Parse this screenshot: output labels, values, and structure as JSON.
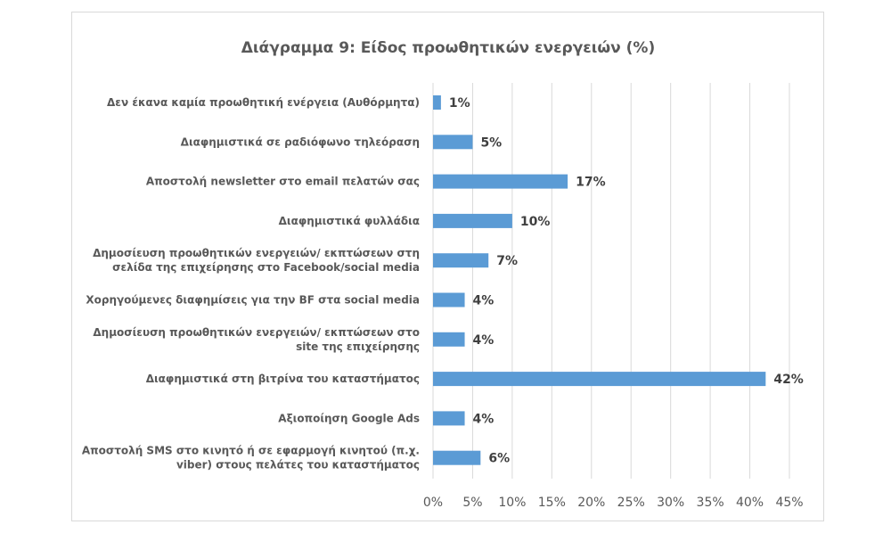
{
  "chart_data": {
    "type": "bar",
    "orientation": "horizontal",
    "title": "Διάγραμμα 9: Είδος προωθητικών ενεργειών  (%)",
    "categories": [
      [
        "Δεν έκανα καμία προωθητική ενέργεια (Αυθόρμητα)"
      ],
      [
        "Διαφημιστικά σε ραδιόφωνο τηλεόραση"
      ],
      [
        "Αποστολή newsletter στο email πελατών σας"
      ],
      [
        "Διαφημιστικά φυλλάδια"
      ],
      [
        "Δημοσίευση προωθητικών ενεργειών/ εκπτώσεων στη",
        "σελίδα της επιχείρησης στο Facebook/social media"
      ],
      [
        "Χορηγούμενες διαφημίσεις για την BF στα social media"
      ],
      [
        "Δημοσίευση προωθητικών ενεργειών/ εκπτώσεων στο",
        "site της επιχείρησης"
      ],
      [
        "Διαφημιστικά στη βιτρίνα του καταστήματος"
      ],
      [
        "Αξιοποίηση Google Ads"
      ],
      [
        "Αποστολή SMS στο κινητό ή σε εφαρμογή κινητού (π.χ.",
        "viber) στους πελάτες του καταστήματος"
      ]
    ],
    "values": [
      1,
      5,
      17,
      10,
      7,
      4,
      4,
      42,
      4,
      6
    ],
    "data_labels": [
      "1%",
      "5%",
      "17%",
      "10%",
      "7%",
      "4%",
      "4%",
      "42%",
      "4%",
      "6%"
    ],
    "xlim": [
      0,
      45
    ],
    "x_ticks": [
      "0%",
      "5%",
      "10%",
      "15%",
      "20%",
      "25%",
      "30%",
      "35%",
      "40%",
      "45%"
    ],
    "grid": true,
    "legend": "none",
    "colors": {
      "bar": "#5b9bd5",
      "grid": "#d9d9d9",
      "text": "#595959"
    }
  }
}
